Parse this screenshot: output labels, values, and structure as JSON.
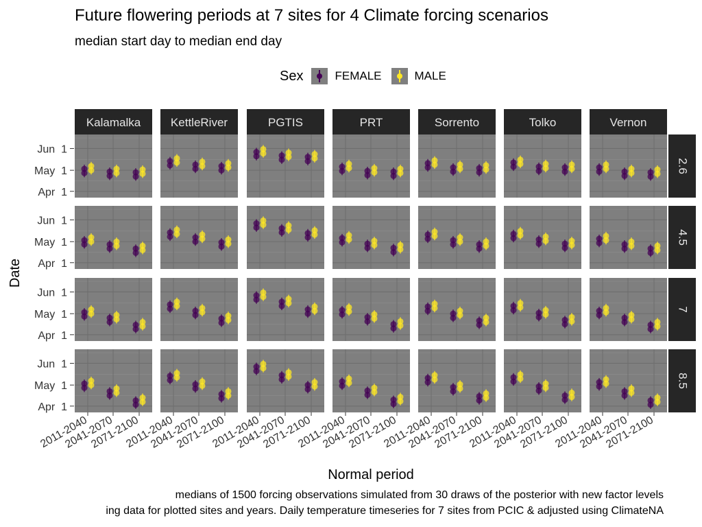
{
  "chart_data": {
    "type": "scatter",
    "title": "Future flowering periods at 7 sites for 4 Climate forcing scenarios",
    "subtitle": "median start day to median end day",
    "xlabel": "Normal period",
    "ylabel": "Date",
    "caption": [
      "medians of 1500 forcing observations simulated from 30 draws of the posterior with new factor levels",
      "ing data for plotted sites and years. Daily temperature timeseries for 7 sites from PCIC & adjusted using ClimateNA"
    ],
    "legend": {
      "title": "Sex",
      "entries": [
        "FEMALE",
        "MALE"
      ],
      "position": "top"
    },
    "colors": {
      "FEMALE": "#440154",
      "MALE": "#fde725",
      "panel": "#7f7f7f",
      "strip": "#262626"
    },
    "sites": [
      "Kalamalka",
      "KettleRiver",
      "PGTIS",
      "PRT",
      "Sorrento",
      "Tolko",
      "Vernon"
    ],
    "scenarios": [
      "2.6",
      "4.5",
      "7",
      "8.5"
    ],
    "periods": [
      "2011-2040",
      "2041-2070",
      "2071-2100"
    ],
    "y_ticks": [
      {
        "label": "Apr  1",
        "doy": 91
      },
      {
        "label": "May  1",
        "doy": 121
      },
      {
        "label": "Jun  1",
        "doy": 152
      }
    ],
    "ylim_doy": [
      82,
      172
    ],
    "y_units": "day of year",
    "base_female": {
      "Kalamalka": [
        120,
        116,
        115
      ],
      "KettleRiver": [
        131,
        126,
        124
      ],
      "PGTIS": [
        144,
        139,
        137
      ],
      "PRT": [
        123,
        117,
        116
      ],
      "Sorrento": [
        128,
        122,
        121
      ],
      "Tolko": [
        129,
        123,
        122
      ],
      "Vernon": [
        122,
        116,
        115
      ]
    },
    "scenario_shift": {
      "2.6": [
        0,
        0,
        0
      ],
      "4.5": [
        0,
        -2,
        -7
      ],
      "7": [
        0,
        -4,
        -13
      ],
      "8.5": [
        0,
        -7,
        -19
      ]
    },
    "male_offset": 4,
    "point_spread": 3,
    "whisker_halfwidth": 9
  }
}
